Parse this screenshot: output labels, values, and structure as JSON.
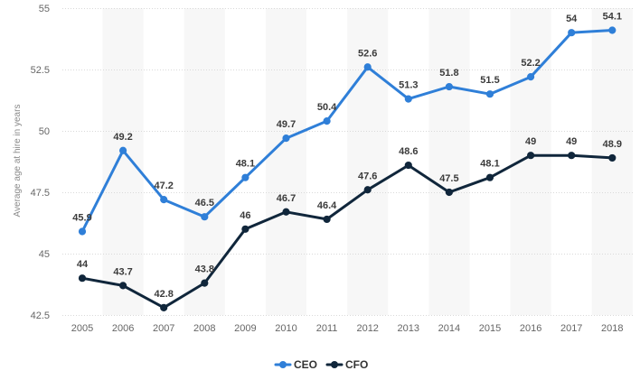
{
  "chart_data": {
    "type": "line",
    "title": "",
    "xlabel": "",
    "ylabel": "Average age at hire in years",
    "ylim": [
      42.5,
      55
    ],
    "yticks": [
      42.5,
      45,
      47.5,
      50,
      52.5,
      55
    ],
    "ytick_labels": [
      "42.5",
      "45",
      "47.5",
      "50",
      "52.5",
      "55"
    ],
    "categories": [
      "2005",
      "2006",
      "2007",
      "2008",
      "2009",
      "2010",
      "2011",
      "2012",
      "2013",
      "2014",
      "2015",
      "2016",
      "2017",
      "2018"
    ],
    "grid": true,
    "legend_position": "bottom-center",
    "series": [
      {
        "name": "CEO",
        "color": "#2f7fd8",
        "values": [
          45.9,
          49.2,
          47.2,
          46.5,
          48.1,
          49.7,
          50.4,
          52.6,
          51.3,
          51.8,
          51.5,
          52.2,
          54,
          54.1
        ],
        "labels": [
          "45.9",
          "49.2",
          "47.2",
          "46.5",
          "48.1",
          "49.7",
          "50.4",
          "52.6",
          "51.3",
          "51.8",
          "51.5",
          "52.2",
          "54",
          "54.1"
        ]
      },
      {
        "name": "CFO",
        "color": "#10263b",
        "values": [
          44,
          43.7,
          42.8,
          43.8,
          46,
          46.7,
          46.4,
          47.6,
          48.6,
          47.5,
          48.1,
          49,
          49,
          48.9
        ],
        "labels": [
          "44",
          "43.7",
          "42.8",
          "43.8",
          "46",
          "46.7",
          "46.4",
          "47.6",
          "48.6",
          "47.5",
          "48.1",
          "49",
          "49",
          "48.9"
        ]
      }
    ]
  }
}
